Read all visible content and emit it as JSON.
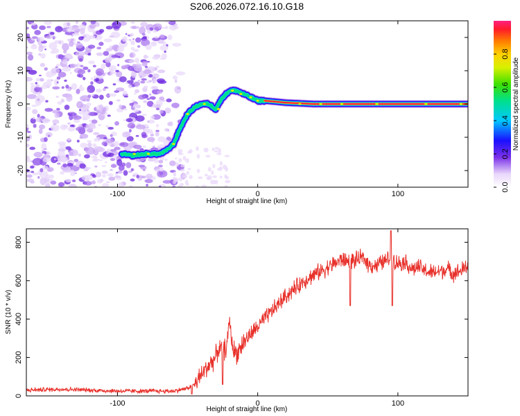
{
  "title": "S206.2026.072.16.10.G18",
  "chart_data": [
    {
      "type": "heatmap",
      "name": "spectrogram",
      "xlabel": "Height of straight line (km)",
      "ylabel": "Frequency (Hz)",
      "xlim": [
        -165,
        150
      ],
      "ylim": [
        -25,
        25
      ],
      "xticks": [
        -100,
        0,
        100
      ],
      "yticks": [
        -20,
        -10,
        0,
        10,
        20
      ],
      "noise_region_x": [
        -165,
        -60
      ],
      "ridge": {
        "x": [
          -97,
          -90,
          -80,
          -70,
          -65,
          -60,
          -55,
          -50,
          -45,
          -40,
          -35,
          -30,
          -25,
          -20,
          -15,
          -10,
          -5,
          0,
          5,
          10,
          20,
          40,
          60,
          80,
          100,
          120,
          140,
          150
        ],
        "freq": [
          -15,
          -15.5,
          -15,
          -15,
          -14,
          -12,
          -7,
          -3,
          -1,
          0,
          0,
          -1.5,
          2,
          4,
          4,
          3,
          2,
          1,
          1,
          0.8,
          0.4,
          0,
          0,
          0,
          0,
          0,
          0,
          0
        ]
      },
      "colorbar": {
        "label": "Normalized spectral amplitude",
        "range": [
          0.0,
          1.0
        ],
        "ticks": [
          "0.0",
          "0.2",
          "0.4",
          "0.6",
          "0.8"
        ]
      }
    },
    {
      "type": "line",
      "name": "snr",
      "xlabel": "Height of straight line (km)",
      "ylabel": "SNR (10 * v/v)",
      "xlim": [
        -165,
        150
      ],
      "ylim": [
        0,
        870
      ],
      "xticks": [
        -100,
        0,
        100
      ],
      "yticks": [
        0,
        200,
        400,
        600,
        800
      ],
      "color": "#e8302a",
      "trend": {
        "x": [
          -165,
          -140,
          -120,
          -100,
          -80,
          -60,
          -50,
          -45,
          -40,
          -35,
          -30,
          -28,
          -25,
          -22,
          -20,
          -18,
          -15,
          -10,
          -5,
          0,
          5,
          10,
          15,
          20,
          25,
          30,
          35,
          40,
          45,
          50,
          55,
          60,
          65,
          70,
          75,
          80,
          85,
          90,
          95,
          100,
          105,
          110,
          115,
          120,
          125,
          130,
          135,
          140,
          145,
          150
        ],
        "y": [
          30,
          35,
          30,
          25,
          25,
          25,
          40,
          60,
          110,
          160,
          200,
          250,
          230,
          260,
          400,
          250,
          220,
          280,
          320,
          360,
          400,
          440,
          480,
          520,
          550,
          580,
          610,
          630,
          650,
          670,
          690,
          710,
          700,
          705,
          720,
          680,
          680,
          700,
          720,
          690,
          700,
          660,
          670,
          650,
          640,
          650,
          660,
          640,
          650,
          680
        ]
      },
      "annotations": [
        {
          "x": -47,
          "y": 10
        },
        {
          "x": -25,
          "y": 60
        },
        {
          "x": 66,
          "y": 470
        },
        {
          "x": 95,
          "y": 860
        },
        {
          "x": 96,
          "y": 470
        }
      ]
    }
  ]
}
